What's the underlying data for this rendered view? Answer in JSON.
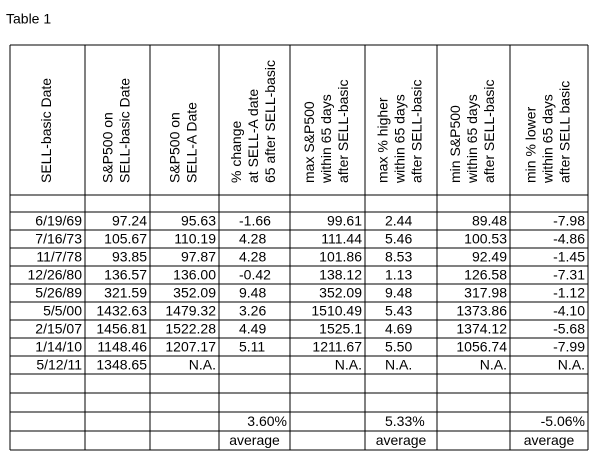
{
  "title": "Table 1",
  "table": {
    "headers": [
      [
        "SELL-basic Date"
      ],
      [
        "S&P500  on",
        "SELL-basic Date"
      ],
      [
        "S&P500  on",
        "SELL-A Date"
      ],
      [
        "% change",
        "at  SELL-A date",
        "65 after SELL-basic"
      ],
      [
        "max S&P500",
        "within 65 days",
        "after SELL-basic"
      ],
      [
        "max % higher",
        "within 65 days",
        "after SELL-basic"
      ],
      [
        "min S&P500",
        "within 65 days",
        "after SELL-basic"
      ],
      [
        "min % lower",
        "within 65 days",
        "after SELL basic"
      ]
    ],
    "rows": [
      [
        "6/19/69",
        "97.24",
        "95.63",
        "-1.66",
        "99.61",
        "2.44",
        "89.48",
        "-7.98"
      ],
      [
        "7/16/73",
        "105.67",
        "110.19",
        "4.28",
        "111.44",
        "5.46",
        "100.53",
        "-4.86"
      ],
      [
        "11/7/78",
        "93.85",
        "97.87",
        "4.28",
        "101.86",
        "8.53",
        "92.49",
        "-1.45"
      ],
      [
        "12/26/80",
        "136.57",
        "136.00",
        "-0.42",
        "138.12",
        "1.13",
        "126.58",
        "-7.31"
      ],
      [
        "5/26/89",
        "321.59",
        "352.09",
        "9.48",
        "352.09",
        "9.48",
        "317.98",
        "-1.12"
      ],
      [
        "5/5/00",
        "1432.63",
        "1479.32",
        "3.26",
        "1510.49",
        "5.43",
        "1373.86",
        "-4.10"
      ],
      [
        "2/15/07",
        "1456.81",
        "1522.28",
        "4.49",
        "1525.1",
        "4.69",
        "1374.12",
        "-5.68"
      ],
      [
        "1/14/10",
        "1148.46",
        "1207.17",
        "5.11",
        "1211.67",
        "5.50",
        "1056.74",
        "-7.99"
      ],
      [
        "5/12/11",
        "1348.65",
        "N.A.",
        null,
        "N.A.",
        "N.A.",
        "N.A.",
        "N.A."
      ]
    ],
    "summary_rows": [
      [
        null,
        null,
        null,
        "3.60%",
        null,
        "5.33%",
        null,
        "-5.06%"
      ],
      [
        null,
        null,
        null,
        "average",
        null,
        "average",
        null,
        "average"
      ]
    ]
  }
}
